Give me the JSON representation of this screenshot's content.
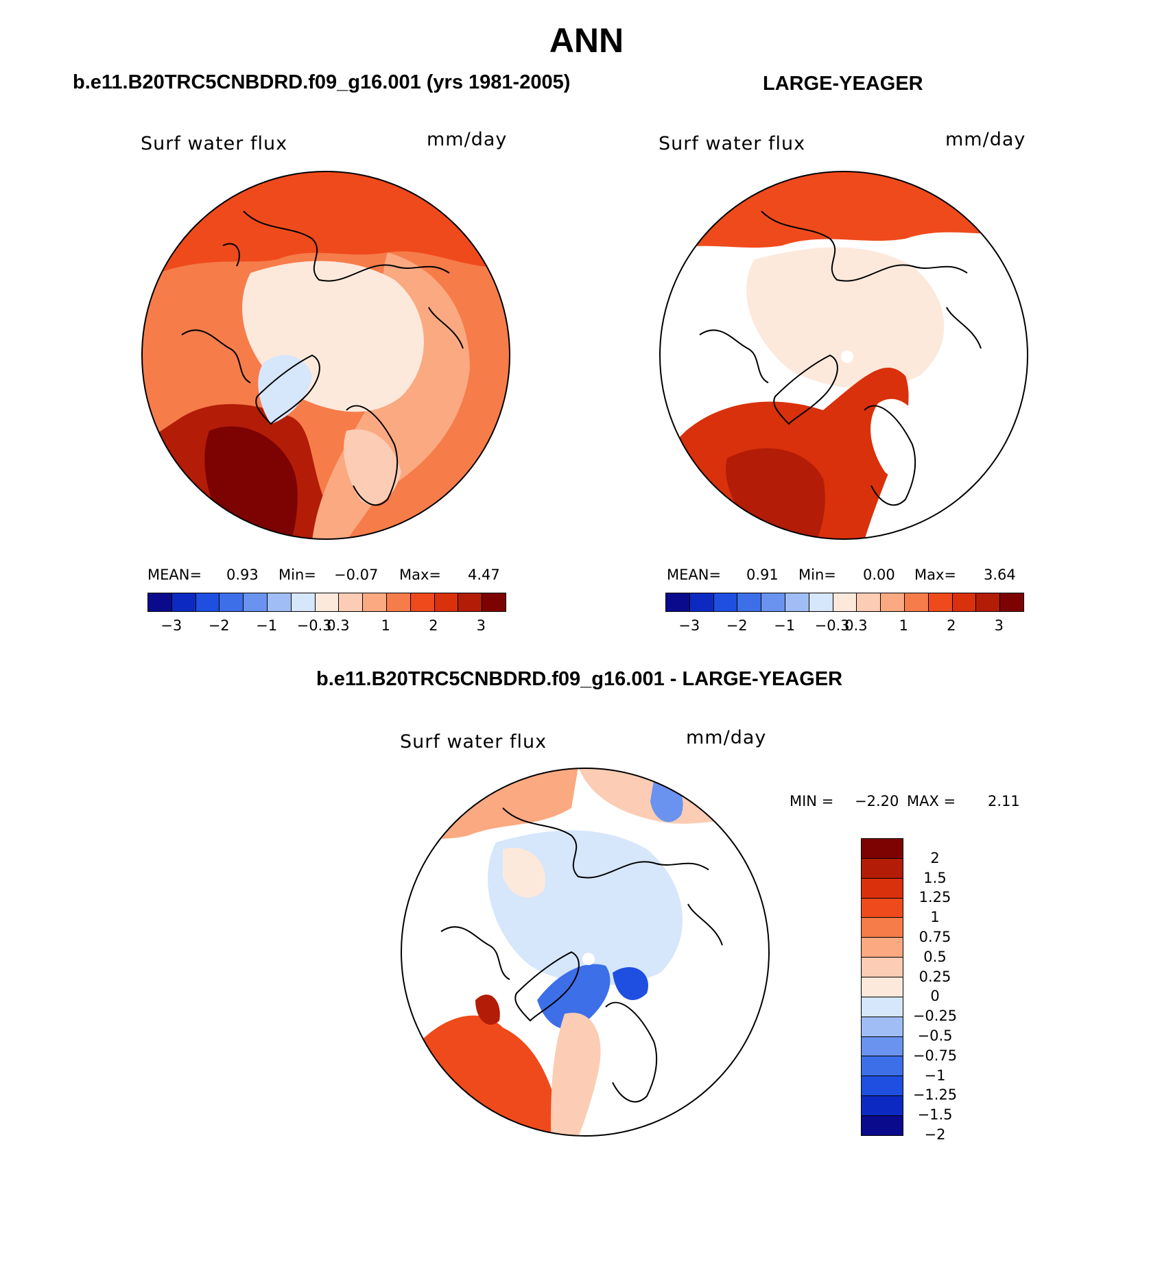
{
  "figure": {
    "title": "ANN",
    "bottom_title": "b.e11.B20TRC5CNBDRD.f09_g16.001 - LARGE-YEAGER"
  },
  "panels": [
    {
      "heading": "b.e11.B20TRC5CNBDRD.f09_g16.001 (yrs 1981-2005)",
      "variable": "Surf water flux",
      "units": "mm/day",
      "mean_label": "MEAN=",
      "mean": "0.93",
      "min_label": "Min=",
      "min": "−0.07",
      "max_label": "Max=",
      "max": "4.47"
    },
    {
      "heading": "LARGE-YEAGER",
      "variable": "Surf water flux",
      "units": "mm/day",
      "mean_label": "MEAN=",
      "mean": "0.91",
      "min_label": "Min=",
      "min": "0.00",
      "max_label": "Max=",
      "max": "3.64"
    },
    {
      "variable": "Surf water flux",
      "units": "mm/day",
      "min_label": "MIN =",
      "min": "−2.20",
      "max_label": "MAX =",
      "max": "2.11"
    }
  ],
  "colorbar_main": {
    "colors": [
      "#0a0a8c",
      "#0c2ac2",
      "#1f4fe0",
      "#3c6fe8",
      "#6a93f0",
      "#a0bdf6",
      "#d6e6fb",
      "#fde9dc",
      "#fcccb4",
      "#fba981",
      "#f67c4a",
      "#ef4a1c",
      "#d9310b",
      "#b31c07",
      "#7d0303"
    ],
    "labels": [
      "−3",
      "−2",
      "−1",
      "−0.3",
      "0.3",
      "1",
      "2",
      "3"
    ]
  },
  "colorbar_diff": {
    "colors": [
      "#7d0303",
      "#b31c07",
      "#d9310b",
      "#ef4a1c",
      "#f67c4a",
      "#fba981",
      "#fcccb4",
      "#fde9dc",
      "#d6e6fb",
      "#a0bdf6",
      "#6a93f0",
      "#3c6fe8",
      "#1f4fe0",
      "#0c2ac2",
      "#0a0a8c"
    ],
    "labels": [
      "2",
      "1.5",
      "1.25",
      "1",
      "0.75",
      "0.5",
      "0.25",
      "0",
      "−0.25",
      "−0.5",
      "−0.75",
      "−1",
      "−1.25",
      "−1.5",
      "−2"
    ]
  }
}
